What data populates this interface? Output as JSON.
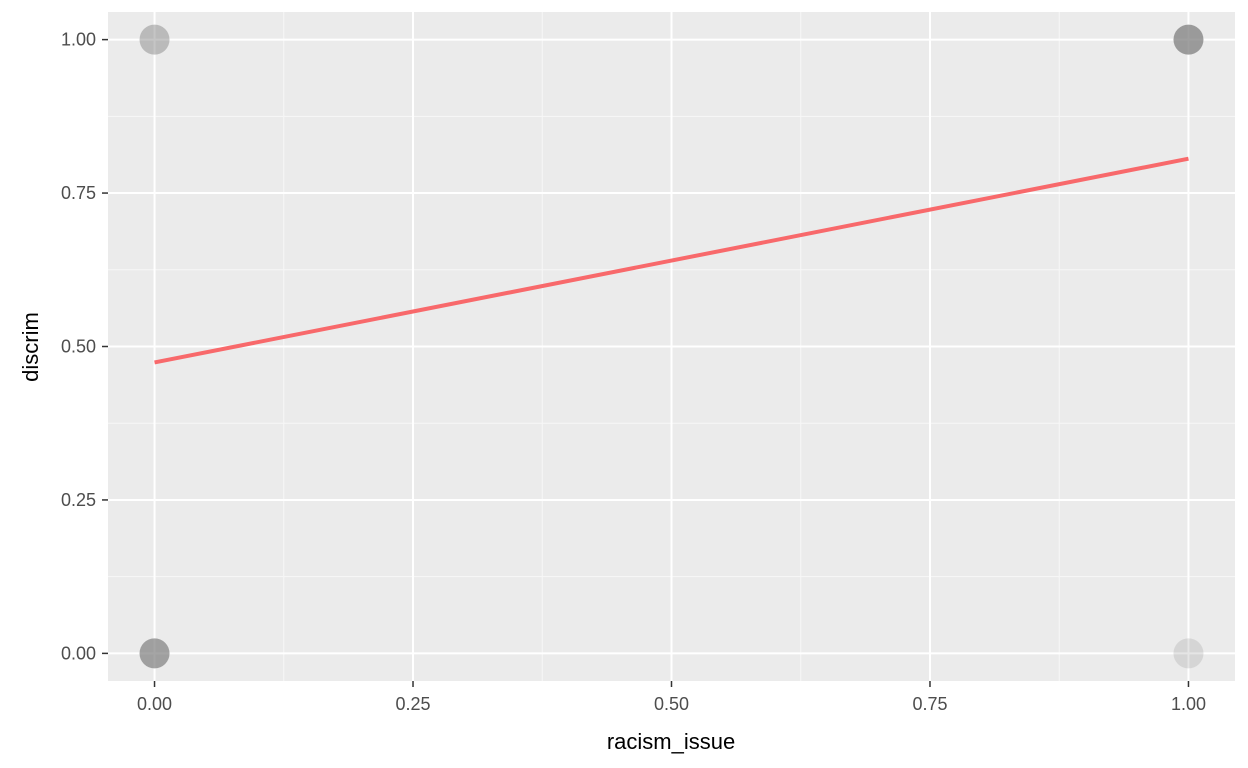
{
  "chart_data": {
    "type": "scatter",
    "title": "",
    "xlabel": "racism_issue",
    "ylabel": "discrim",
    "xlim": [
      -0.045,
      1.045
    ],
    "ylim": [
      -0.045,
      1.045
    ],
    "x_ticks": [
      0,
      0.25,
      0.5,
      0.75,
      1
    ],
    "x_tick_labels": [
      "0.00",
      "0.25",
      "0.50",
      "0.75",
      "1.00"
    ],
    "y_ticks": [
      0,
      0.25,
      0.5,
      0.75,
      1
    ],
    "y_tick_labels": [
      "0.00",
      "0.25",
      "0.50",
      "0.75",
      "1.00"
    ],
    "grid": true,
    "points": [
      {
        "x": 0,
        "y": 1,
        "opacity": 0.45
      },
      {
        "x": 1,
        "y": 1,
        "opacity": 0.75
      },
      {
        "x": 0,
        "y": 0,
        "opacity": 0.7
      },
      {
        "x": 1,
        "y": 0,
        "opacity": 0.2
      }
    ],
    "fit_line": {
      "x": [
        0,
        1
      ],
      "y": [
        0.474,
        0.806
      ],
      "color": "#f8696b"
    },
    "colors": {
      "panel": "#ebebeb",
      "grid_major": "#ffffff",
      "grid_minor": "#f7f7f7",
      "point": "#7f7f7f"
    }
  }
}
